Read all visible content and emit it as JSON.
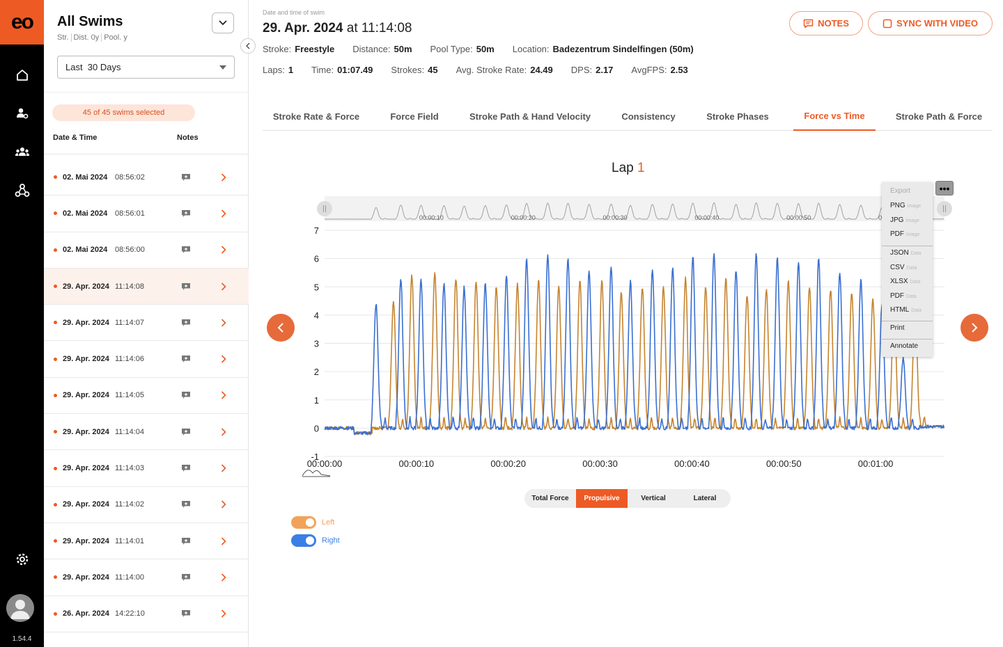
{
  "app": {
    "logo_text": "eo",
    "version": "1.54.4"
  },
  "rail": {
    "icons": [
      "home-icon",
      "user-settings-icon",
      "team-icon",
      "share-network-icon",
      "settings-gear-icon"
    ]
  },
  "list_panel": {
    "title": "All Swims",
    "filters": [
      "Str.",
      "Dist. 0y",
      "Pool. y"
    ],
    "period_select": "Last  30 Days",
    "selection_badge": "45 of 45 swims selected",
    "col_date": "Date & Time",
    "col_notes": "Notes",
    "rows": [
      {
        "date": "02. Mai 2024",
        "time": "08:56:02"
      },
      {
        "date": "02. Mai 2024",
        "time": "08:56:01"
      },
      {
        "date": "02. Mai 2024",
        "time": "08:56:00"
      },
      {
        "date": "29. Apr. 2024",
        "time": "11:14:08"
      },
      {
        "date": "29. Apr. 2024",
        "time": "11:14:07"
      },
      {
        "date": "29. Apr. 2024",
        "time": "11:14:06"
      },
      {
        "date": "29. Apr. 2024",
        "time": "11:14:05"
      },
      {
        "date": "29. Apr. 2024",
        "time": "11:14:04"
      },
      {
        "date": "29. Apr. 2024",
        "time": "11:14:03"
      },
      {
        "date": "29. Apr. 2024",
        "time": "11:14:02"
      },
      {
        "date": "29. Apr. 2024",
        "time": "11:14:01"
      },
      {
        "date": "29. Apr. 2024",
        "time": "11:14:00"
      },
      {
        "date": "26. Apr. 2024",
        "time": "14:22:10"
      }
    ],
    "selected_index": 3
  },
  "header": {
    "caption": "Date and time of swim",
    "date": "29. Apr. 2024",
    "at": "at",
    "time": "11:14:08",
    "notes_label": "NOTES",
    "sync_label": "SYNC WITH VIDEO",
    "stats1": [
      {
        "label": "Stroke:",
        "value": "Freestyle"
      },
      {
        "label": "Distance:",
        "value": "50m"
      },
      {
        "label": "Pool Type:",
        "value": "50m"
      },
      {
        "label": "Location:",
        "value": "Badezentrum Sindelfingen (50m)"
      }
    ],
    "stats2": [
      {
        "label": "Laps:",
        "value": "1"
      },
      {
        "label": "Time:",
        "value": "01:07.49"
      },
      {
        "label": "Strokes:",
        "value": "45"
      },
      {
        "label": "Avg. Stroke Rate:",
        "value": "24.49"
      },
      {
        "label": "DPS:",
        "value": "2.17"
      },
      {
        "label": "AvgFPS:",
        "value": "2.53"
      }
    ]
  },
  "tabs": [
    "Stroke Rate & Force",
    "Force Field",
    "Stroke Path & Hand Velocity",
    "Consistency",
    "Stroke Phases",
    "Force vs Time",
    "Stroke Path & Force"
  ],
  "active_tab": 5,
  "chart_data": {
    "type": "line",
    "title_prefix": "Lap",
    "title_value": "1",
    "x_unit": "seconds",
    "x_tick_labels": [
      "00:00:00",
      "00:00:10",
      "00:00:20",
      "00:00:30",
      "00:00:40",
      "00:00:50",
      "00:01:00"
    ],
    "x_range": [
      0,
      67.5
    ],
    "y_range": [
      -1,
      7
    ],
    "y_ticks": [
      -1,
      0,
      1,
      2,
      3,
      4,
      5,
      6,
      7
    ],
    "grid": true,
    "series": [
      {
        "name": "Left",
        "color": "#c58430",
        "peaks": [
          [
            7.5,
            4.5
          ],
          [
            9.5,
            5.4
          ],
          [
            12.0,
            5.5
          ],
          [
            14.3,
            5.3
          ],
          [
            16.5,
            5.2
          ],
          [
            18.7,
            5.0
          ],
          [
            21.0,
            5.1
          ],
          [
            23.3,
            5.3
          ],
          [
            25.5,
            5.0
          ],
          [
            27.8,
            5.2
          ],
          [
            30.2,
            5.2
          ],
          [
            32.3,
            4.8
          ],
          [
            34.6,
            5.0
          ],
          [
            36.9,
            5.0
          ],
          [
            39.3,
            5.3
          ],
          [
            41.5,
            5.0
          ],
          [
            43.7,
            5.3
          ],
          [
            46.0,
            4.7
          ],
          [
            48.1,
            4.9
          ],
          [
            50.5,
            5.2
          ],
          [
            52.8,
            5.0
          ],
          [
            55.1,
            4.9
          ],
          [
            57.4,
            4.8
          ],
          [
            59.7,
            4.6
          ],
          [
            62.0,
            4.5
          ],
          [
            64.3,
            4.4
          ]
        ]
      },
      {
        "name": "Right",
        "color": "#3a6fd1",
        "peaks": [
          [
            5.6,
            4.4
          ],
          [
            8.3,
            5.3
          ],
          [
            10.5,
            5.3
          ],
          [
            13.0,
            5.1
          ],
          [
            15.2,
            5.0
          ],
          [
            17.5,
            5.1
          ],
          [
            19.8,
            5.4
          ],
          [
            22.0,
            6.0
          ],
          [
            24.3,
            6.1
          ],
          [
            26.5,
            6.0
          ],
          [
            28.8,
            5.6
          ],
          [
            31.2,
            5.7
          ],
          [
            33.3,
            5.2
          ],
          [
            35.7,
            5.6
          ],
          [
            37.9,
            5.7
          ],
          [
            40.1,
            6.1
          ],
          [
            42.4,
            6.2
          ],
          [
            44.8,
            5.6
          ],
          [
            47.0,
            6.2
          ],
          [
            49.3,
            6.0
          ],
          [
            51.6,
            5.9
          ],
          [
            53.8,
            6.0
          ],
          [
            56.1,
            5.5
          ],
          [
            58.4,
            5.3
          ],
          [
            60.7,
            4.4
          ],
          [
            63.0,
            2.5
          ]
        ]
      }
    ],
    "legend_placement": "bottom-left"
  },
  "force_types": [
    "Total Force",
    "Propulsive",
    "Vertical",
    "Lateral"
  ],
  "force_type_active": 1,
  "export_menu": {
    "header": "Export",
    "image_items": [
      {
        "label": "PNG",
        "hint": "Image"
      },
      {
        "label": "JPG",
        "hint": "Image"
      },
      {
        "label": "PDF",
        "hint": "Image"
      }
    ],
    "data_items": [
      {
        "label": "JSON",
        "hint": "Data"
      },
      {
        "label": "CSV",
        "hint": "Data"
      },
      {
        "label": "XLSX",
        "hint": "Data"
      },
      {
        "label": "PDF",
        "hint": "Data"
      },
      {
        "label": "HTML",
        "hint": "Data"
      }
    ],
    "print": "Print",
    "annotate": "Annotate",
    "button": "•••"
  }
}
